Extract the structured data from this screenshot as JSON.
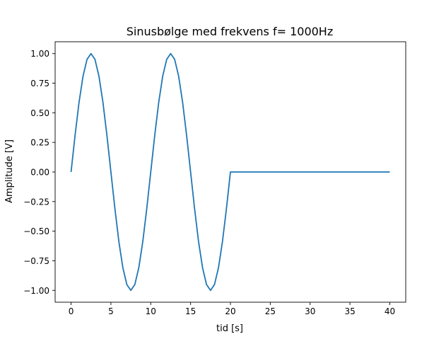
{
  "chart_data": {
    "type": "line",
    "title": "Sinusbølge med frekvens f= 1000Hz",
    "xlabel": "tid [s]",
    "ylabel": "Amplitude [V]",
    "xlim": [
      -2,
      42
    ],
    "ylim": [
      -1.1,
      1.1
    ],
    "grid": false,
    "x_ticks": [
      0,
      5,
      10,
      15,
      20,
      25,
      30,
      35,
      40
    ],
    "x_tick_labels": [
      "0",
      "5",
      "10",
      "15",
      "20",
      "25",
      "30",
      "35",
      "40"
    ],
    "y_ticks": [
      1.0,
      0.75,
      0.5,
      0.25,
      0.0,
      -0.25,
      -0.5,
      -0.75,
      -1.0
    ],
    "y_tick_labels": [
      "1.00",
      "0.75",
      "0.50",
      "0.25",
      "0.00",
      "−0.25",
      "−0.50",
      "−0.75",
      "−1.00"
    ],
    "series": [
      {
        "color": "#1f77b4",
        "x": [
          0,
          0.5,
          1,
          1.5,
          2,
          2.5,
          3,
          3.5,
          4,
          4.5,
          5,
          5.5,
          6,
          6.5,
          7,
          7.5,
          8,
          8.5,
          9,
          9.5,
          10,
          10.5,
          11,
          11.5,
          12,
          12.5,
          13,
          13.5,
          14,
          14.5,
          15,
          15.5,
          16,
          16.5,
          17,
          17.5,
          18,
          18.5,
          19,
          19.5,
          20,
          21,
          40
        ],
        "y": [
          0,
          0.309,
          0.588,
          0.809,
          0.951,
          1,
          0.951,
          0.809,
          0.588,
          0.309,
          0,
          -0.309,
          -0.588,
          -0.809,
          -0.951,
          -1,
          -0.951,
          -0.809,
          -0.588,
          -0.309,
          0,
          0.309,
          0.588,
          0.809,
          0.951,
          1,
          0.951,
          0.809,
          0.588,
          0.309,
          0,
          -0.309,
          -0.588,
          -0.809,
          -0.951,
          -1,
          -0.951,
          -0.809,
          -0.588,
          -0.309,
          0,
          0,
          0
        ]
      }
    ]
  }
}
